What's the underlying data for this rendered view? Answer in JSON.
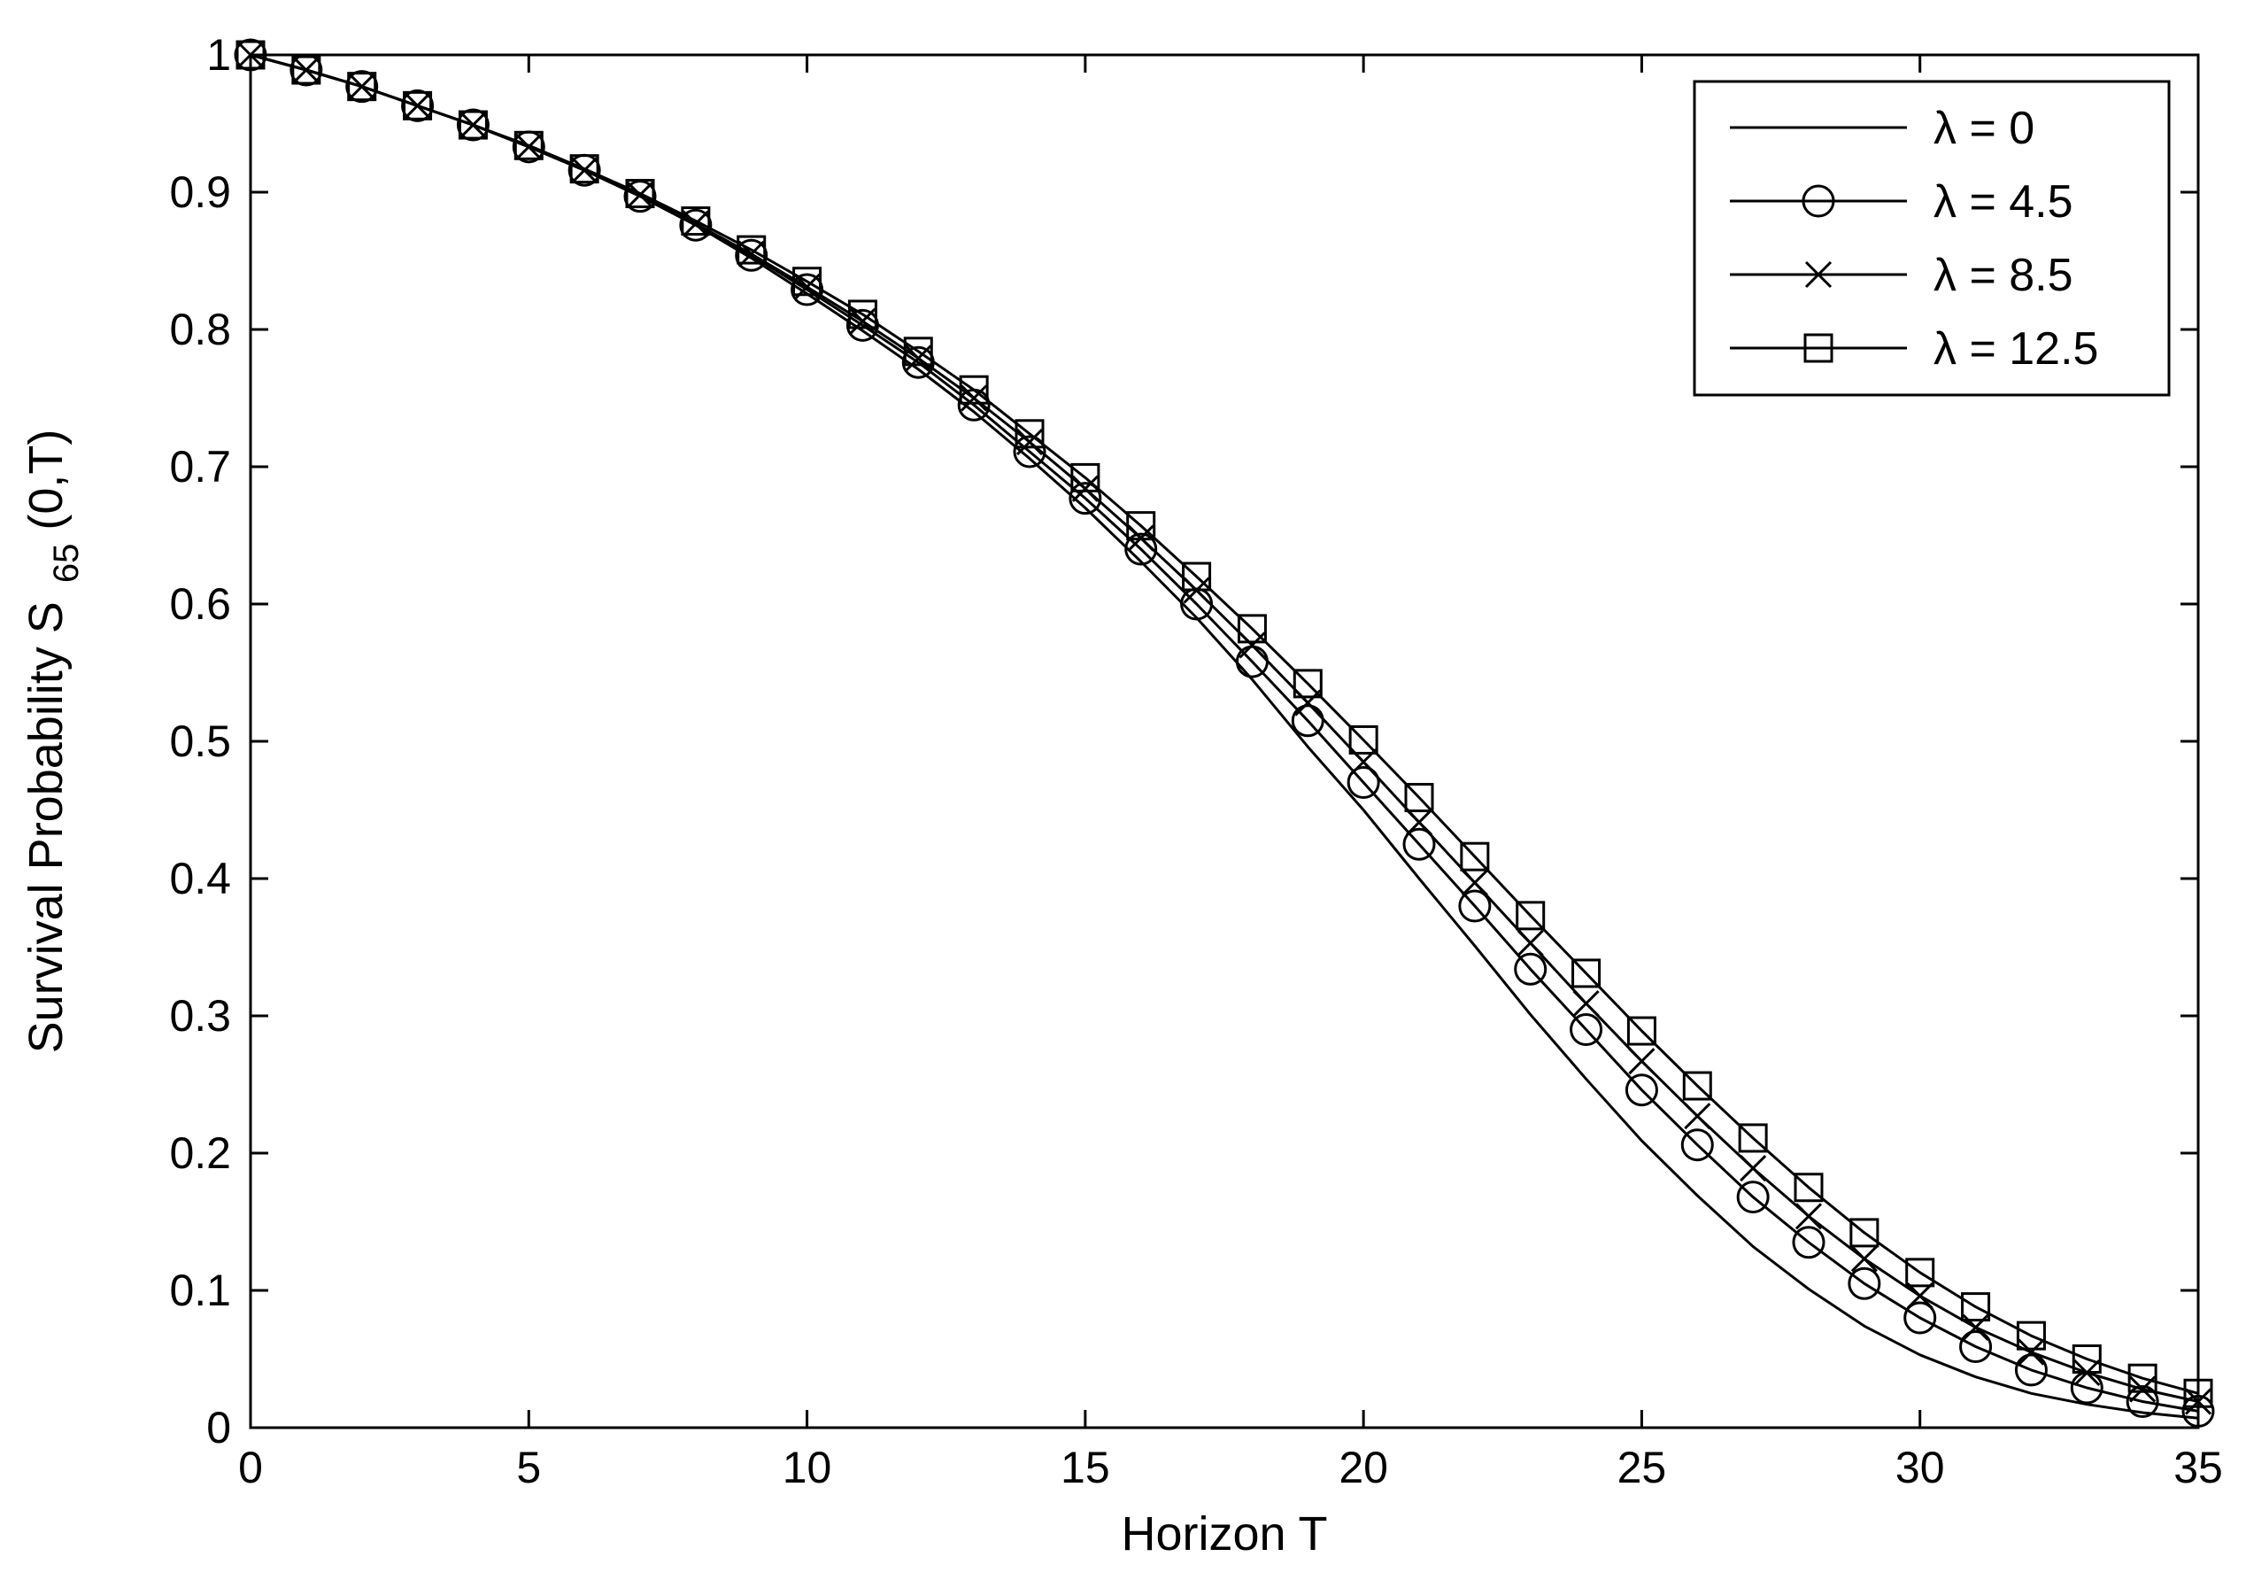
{
  "chart_data": {
    "type": "line",
    "title": "",
    "xlabel": "Horizon T",
    "ylabel": {
      "main": "Survival Probability S",
      "subscript": "65",
      "suffix": "(0,T)"
    },
    "xlim": [
      0,
      35
    ],
    "ylim": [
      0,
      1
    ],
    "xticks": [
      0,
      5,
      10,
      15,
      20,
      25,
      30,
      35
    ],
    "yticks": [
      0,
      0.1,
      0.2,
      0.3,
      0.4,
      0.5,
      0.6,
      0.7,
      0.8,
      0.9,
      1
    ],
    "grid": false,
    "legend_position": "top-right",
    "x": [
      0,
      1,
      2,
      3,
      4,
      5,
      6,
      7,
      8,
      9,
      10,
      11,
      12,
      13,
      14,
      15,
      16,
      17,
      18,
      19,
      20,
      21,
      22,
      23,
      24,
      25,
      26,
      27,
      28,
      29,
      30,
      31,
      32,
      33,
      34,
      35
    ],
    "series": [
      {
        "name": "λ = 0",
        "marker": "none",
        "values": [
          1.0,
          0.989,
          0.977,
          0.963,
          0.949,
          0.933,
          0.916,
          0.897,
          0.876,
          0.852,
          0.826,
          0.799,
          0.771,
          0.74,
          0.706,
          0.67,
          0.631,
          0.59,
          0.545,
          0.496,
          0.45,
          0.4,
          0.351,
          0.301,
          0.254,
          0.209,
          0.169,
          0.132,
          0.101,
          0.074,
          0.053,
          0.037,
          0.025,
          0.017,
          0.011,
          0.007
        ]
      },
      {
        "name": "λ = 4.5",
        "marker": "circle",
        "values": [
          1.0,
          0.989,
          0.977,
          0.963,
          0.949,
          0.933,
          0.916,
          0.897,
          0.876,
          0.854,
          0.829,
          0.803,
          0.776,
          0.745,
          0.711,
          0.677,
          0.64,
          0.6,
          0.558,
          0.515,
          0.47,
          0.425,
          0.38,
          0.334,
          0.29,
          0.246,
          0.206,
          0.168,
          0.135,
          0.105,
          0.08,
          0.059,
          0.042,
          0.029,
          0.019,
          0.012
        ]
      },
      {
        "name": "λ = 8.5",
        "marker": "x",
        "values": [
          1.0,
          0.989,
          0.977,
          0.963,
          0.949,
          0.933,
          0.916,
          0.898,
          0.877,
          0.855,
          0.831,
          0.806,
          0.779,
          0.75,
          0.718,
          0.684,
          0.648,
          0.61,
          0.57,
          0.528,
          0.485,
          0.441,
          0.397,
          0.353,
          0.309,
          0.267,
          0.227,
          0.189,
          0.154,
          0.123,
          0.096,
          0.073,
          0.055,
          0.04,
          0.028,
          0.019
        ]
      },
      {
        "name": "λ = 12.5",
        "marker": "square",
        "values": [
          1.0,
          0.989,
          0.977,
          0.963,
          0.949,
          0.934,
          0.917,
          0.899,
          0.879,
          0.858,
          0.835,
          0.811,
          0.784,
          0.756,
          0.724,
          0.692,
          0.657,
          0.62,
          0.582,
          0.542,
          0.501,
          0.459,
          0.416,
          0.373,
          0.331,
          0.289,
          0.249,
          0.211,
          0.175,
          0.142,
          0.113,
          0.088,
          0.067,
          0.05,
          0.036,
          0.025
        ]
      }
    ]
  }
}
